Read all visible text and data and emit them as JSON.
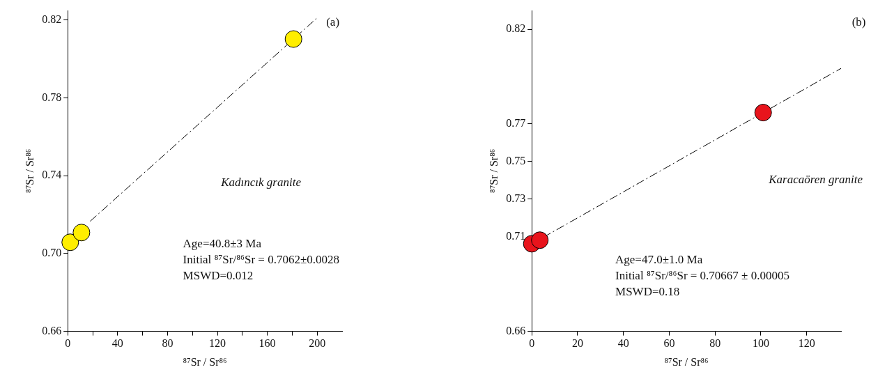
{
  "chart_data": [
    {
      "type": "scatter",
      "xlabel": "⁸⁷Sr / Sr⁸⁶",
      "ylabel": "⁸⁷Sr / Sr⁸⁶",
      "xlim": [
        0,
        220
      ],
      "ylim": [
        0.66,
        0.825
      ],
      "xticks": [
        0,
        {
          "value": 20,
          "label": null
        },
        40,
        {
          "value": 60,
          "label": null
        },
        80,
        {
          "value": 100,
          "label": null
        },
        120,
        {
          "value": 140,
          "label": null
        },
        160,
        {
          "value": 180,
          "label": null
        },
        200
      ],
      "yticks": [
        {
          "value": 0.66,
          "label": "0.66"
        },
        {
          "value": 0.7,
          "label": "0.70"
        },
        {
          "value": 0.74,
          "label": "0.74"
        },
        {
          "value": 0.78,
          "label": "0.78"
        },
        {
          "value": 0.82,
          "label": "0.82"
        }
      ],
      "grid": false,
      "legend": false,
      "marker": "circle",
      "series": [
        {
          "type": "scatter",
          "color": "#ffee00",
          "x": [
            2,
            11,
            181
          ],
          "values": [
            0.7058,
            0.7108,
            0.8103
          ]
        },
        {
          "type": "line",
          "color": "#000000",
          "line_style": "dashed",
          "marker": "none",
          "x": [
            18,
            200
          ],
          "values": [
            0.7166,
            0.8212
          ]
        }
      ],
      "annotations": [
        "(a)",
        "Kadıncık granite",
        "Age=40.8±3 Ma",
        "Initial ⁸⁷Sr/⁸⁶Sr = 0.7062±0.0028",
        "MSWD=0.012"
      ]
    },
    {
      "type": "scatter",
      "xlabel": "⁸⁷Sr / Sr⁸⁶",
      "ylabel": "⁸⁷Sr / Sr⁸⁶",
      "xlim": [
        0,
        135
      ],
      "ylim": [
        0.66,
        0.83
      ],
      "xticks": [
        0,
        20,
        40,
        60,
        80,
        100,
        120
      ],
      "yticks": [
        {
          "value": 0.66,
          "label": "0.66"
        },
        {
          "value": 0.71,
          "label": "0.71"
        },
        {
          "value": 0.73,
          "label": "0.73"
        },
        {
          "value": 0.75,
          "label": "0.75"
        },
        {
          "value": 0.77,
          "label": "0.77"
        },
        {
          "value": 0.82,
          "label": "0.82"
        }
      ],
      "grid": false,
      "legend": false,
      "marker": "circle",
      "series": [
        {
          "type": "scatter",
          "color": "#e8141c",
          "x": [
            0,
            3.5,
            101
          ],
          "values": [
            0.7064,
            0.7083,
            0.7759
          ]
        },
        {
          "type": "line",
          "color": "#000000",
          "line_style": "dashed",
          "marker": "none",
          "x": [
            5,
            135
          ],
          "values": [
            0.7098,
            0.7993
          ]
        }
      ],
      "annotations": [
        "(b)",
        "Karacaören granite",
        "Age=47.0±1.0 Ma",
        "Initial ⁸⁷Sr/⁸⁶Sr = 0.70667 ± 0.00005",
        "MSWD=0.18"
      ]
    }
  ]
}
